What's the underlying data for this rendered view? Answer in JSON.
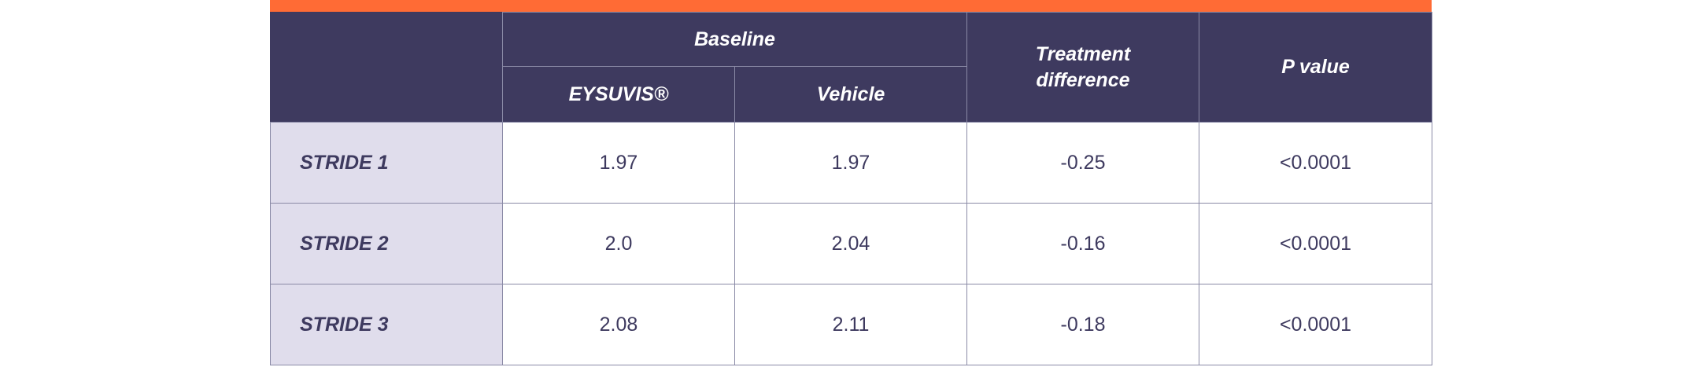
{
  "colors": {
    "accent_bar": "#ff6b35",
    "header_bg": "#3e3a5f",
    "label_bg": "#e0ddec",
    "border": "#8a8aa6"
  },
  "table": {
    "header": {
      "group_label": "Baseline",
      "sub_col_1": "EYSUVIS®",
      "sub_col_2": "Vehicle",
      "treatment_difference": "Treatment\ndifference",
      "p_value": "P value"
    },
    "rows": [
      {
        "label": "STRIDE 1",
        "eysuvis": "1.97",
        "vehicle": "1.97",
        "difference": "-0.25",
        "p_value": "<0.0001"
      },
      {
        "label": "STRIDE 2",
        "eysuvis": "2.0",
        "vehicle": "2.04",
        "difference": "-0.16",
        "p_value": "<0.0001"
      },
      {
        "label": "STRIDE 3",
        "eysuvis": "2.08",
        "vehicle": "2.11",
        "difference": "-0.18",
        "p_value": "<0.0001"
      }
    ]
  }
}
